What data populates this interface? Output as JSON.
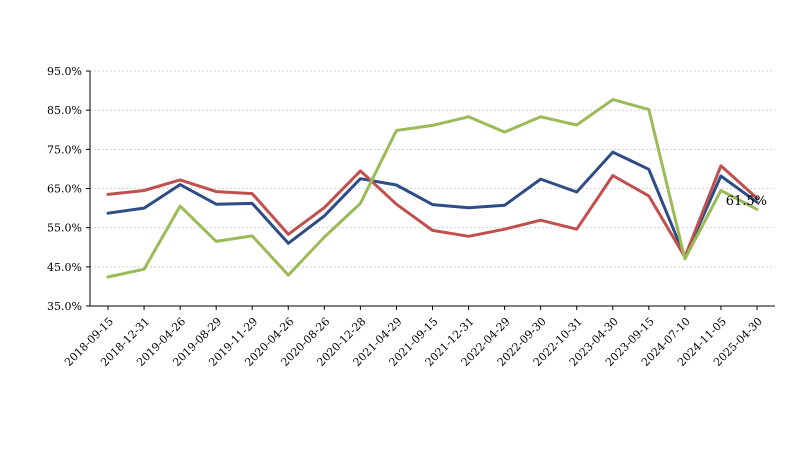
{
  "chart_data": {
    "type": "line",
    "title": "",
    "xlabel": "",
    "ylabel": "",
    "ylim": [
      0.35,
      0.95
    ],
    "y_ticks": [
      "35.0%",
      "45.0%",
      "55.0%",
      "65.0%",
      "75.0%",
      "85.0%",
      "95.0%"
    ],
    "y_tick_values": [
      0.35,
      0.45,
      0.55,
      0.65,
      0.75,
      0.85,
      0.95
    ],
    "grid": true,
    "legend": "none",
    "categories": [
      "2018-09-15",
      "2018-12-31",
      "2019-04-26",
      "2019-08-29",
      "2019-11-29",
      "2020-04-26",
      "2020-08-26",
      "2020-12-28",
      "2021-04-29",
      "2021-09-15",
      "2021-12-31",
      "2022-04-29",
      "2022-09-30",
      "2022-10-31",
      "2023-04-30",
      "2023-09-15",
      "2024-07-10",
      "2024-11-05",
      "2025-04-30"
    ],
    "series": [
      {
        "color": "#2e4d86",
        "values": [
          0.587,
          0.6,
          0.66,
          0.61,
          0.612,
          0.51,
          0.58,
          0.675,
          0.659,
          0.609,
          0.601,
          0.607,
          0.674,
          0.641,
          0.743,
          0.699,
          0.475,
          0.682,
          0.615
        ]
      },
      {
        "color": "#c0504d",
        "values": [
          0.635,
          0.645,
          0.672,
          0.642,
          0.637,
          0.533,
          0.601,
          0.695,
          0.61,
          0.543,
          0.528,
          0.546,
          0.569,
          0.546,
          0.683,
          0.631,
          0.475,
          0.708,
          0.625
        ]
      },
      {
        "color": "#9bbb59",
        "values": [
          0.424,
          0.444,
          0.605,
          0.515,
          0.529,
          0.429,
          0.526,
          0.612,
          0.798,
          0.811,
          0.833,
          0.794,
          0.833,
          0.812,
          0.877,
          0.852,
          0.47,
          0.645,
          0.597
        ]
      }
    ],
    "annotations": [
      {
        "text": "61.5%",
        "series_index": 0,
        "point_index": 18
      }
    ]
  }
}
